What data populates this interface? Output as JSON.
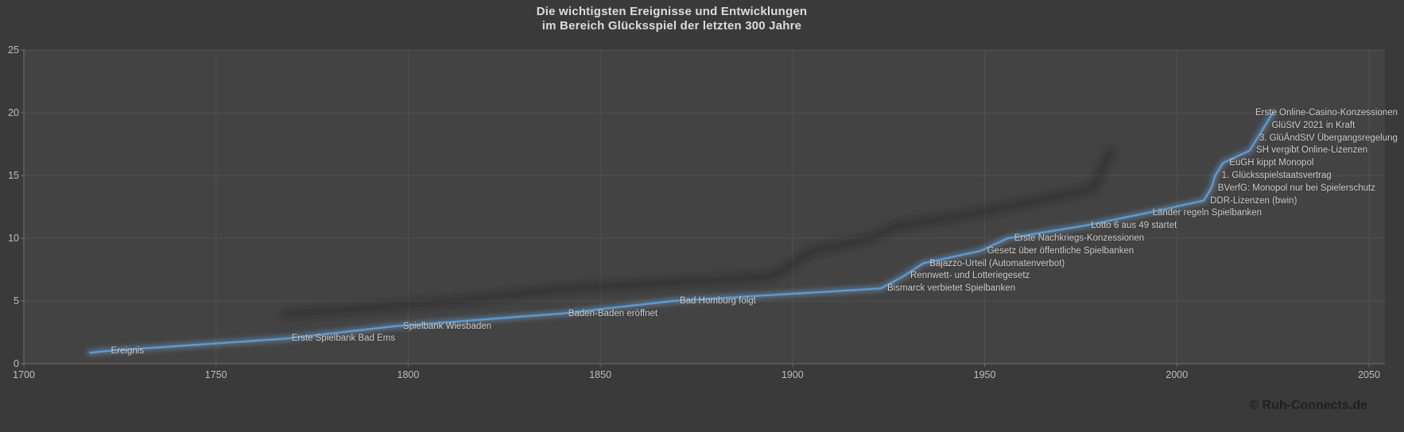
{
  "title": {
    "line1": "Die wichtigsten Ereignisse und Entwicklungen",
    "line2": "im Bereich Glücksspiel der letzten 300 Jahre"
  },
  "footer": {
    "copyright": "© Ruh-Connects.de"
  },
  "chart_data": {
    "type": "line",
    "title": "Die wichtigsten Ereignisse und Entwicklungen im Bereich Glücksspiel der letzten 300 Jahre",
    "xlabel": "",
    "ylabel": "",
    "grid": true,
    "legend": "none",
    "x_axis": {
      "min": 1700,
      "max": 2050,
      "tick_step": 50,
      "ticks": [
        1700,
        1750,
        1800,
        1850,
        1900,
        1950,
        2000,
        2050
      ]
    },
    "y_axis": {
      "min": 0,
      "max": 25,
      "tick_step": 5,
      "ticks": [
        0,
        5,
        10,
        15,
        20,
        25
      ]
    },
    "series": [
      {
        "name": "Ereignis",
        "points": [
          {
            "year": 1721,
            "value": 1,
            "label": "Ereignis"
          },
          {
            "year": 1768,
            "value": 2,
            "label": "Erste Spielbank Bad Ems"
          },
          {
            "year": 1797,
            "value": 3,
            "label": "Spielbank Wiesbaden"
          },
          {
            "year": 1840,
            "value": 4,
            "label": "Baden-Baden eröffnet"
          },
          {
            "year": 1869,
            "value": 5,
            "label": "Bad Homburg folgt"
          },
          {
            "year": 1923,
            "value": 6,
            "label": "Bismarck verbietet Spielbanken"
          },
          {
            "year": 1929,
            "value": 7,
            "label": "Rennwett- und Lotteriegesetz"
          },
          {
            "year": 1934,
            "value": 8,
            "label": "Bajazzo-Urteil (Automatenverbot)"
          },
          {
            "year": 1949,
            "value": 9,
            "label": "Gesetz über öffentliche Spielbanken"
          },
          {
            "year": 1956,
            "value": 10,
            "label": "Erste Nachkriegs-Konzessionen"
          },
          {
            "year": 1976,
            "value": 11,
            "label": "Lotto 6 aus 49 startet"
          },
          {
            "year": 1992,
            "value": 12,
            "label": "Länder regeln Spielbanken"
          },
          {
            "year": 2007,
            "value": 13,
            "label": "DDR-Lizenzen (bwin)"
          },
          {
            "year": 2009,
            "value": 14,
            "label": "BVerfG: Monopol nur bei Spielerschutz"
          },
          {
            "year": 2010,
            "value": 15,
            "label": "1. Glücksspielstaatsvertrag"
          },
          {
            "year": 2012,
            "value": 16,
            "label": "EuGH kippt Monopol"
          },
          {
            "year": 2019,
            "value": 17,
            "label": "SH vergibt Online-Lizenzen"
          },
          {
            "year": 2021,
            "value": 18,
            "label": "3. GlüÄndStV Übergangsregelung"
          },
          {
            "year": 2023,
            "value": 19,
            "label": "GlüStV 2021 in Kraft"
          },
          {
            "year": 2025,
            "value": 20,
            "label": "Erste Online-Casino-Konzessionen"
          }
        ]
      }
    ],
    "colors": {
      "line": "#5b9bd5",
      "line_glow": "#7fb2e2",
      "shadow_line": "#121212",
      "grid": "#515151",
      "axis": "#707070",
      "tick_text": "#bdbdbd",
      "label_text": "#cdcdcd",
      "title_text": "#dcdcdc",
      "plot_bg": "#434343",
      "page_bg": "#3a3a3a",
      "copyright_text": "#1f1f1f"
    }
  }
}
